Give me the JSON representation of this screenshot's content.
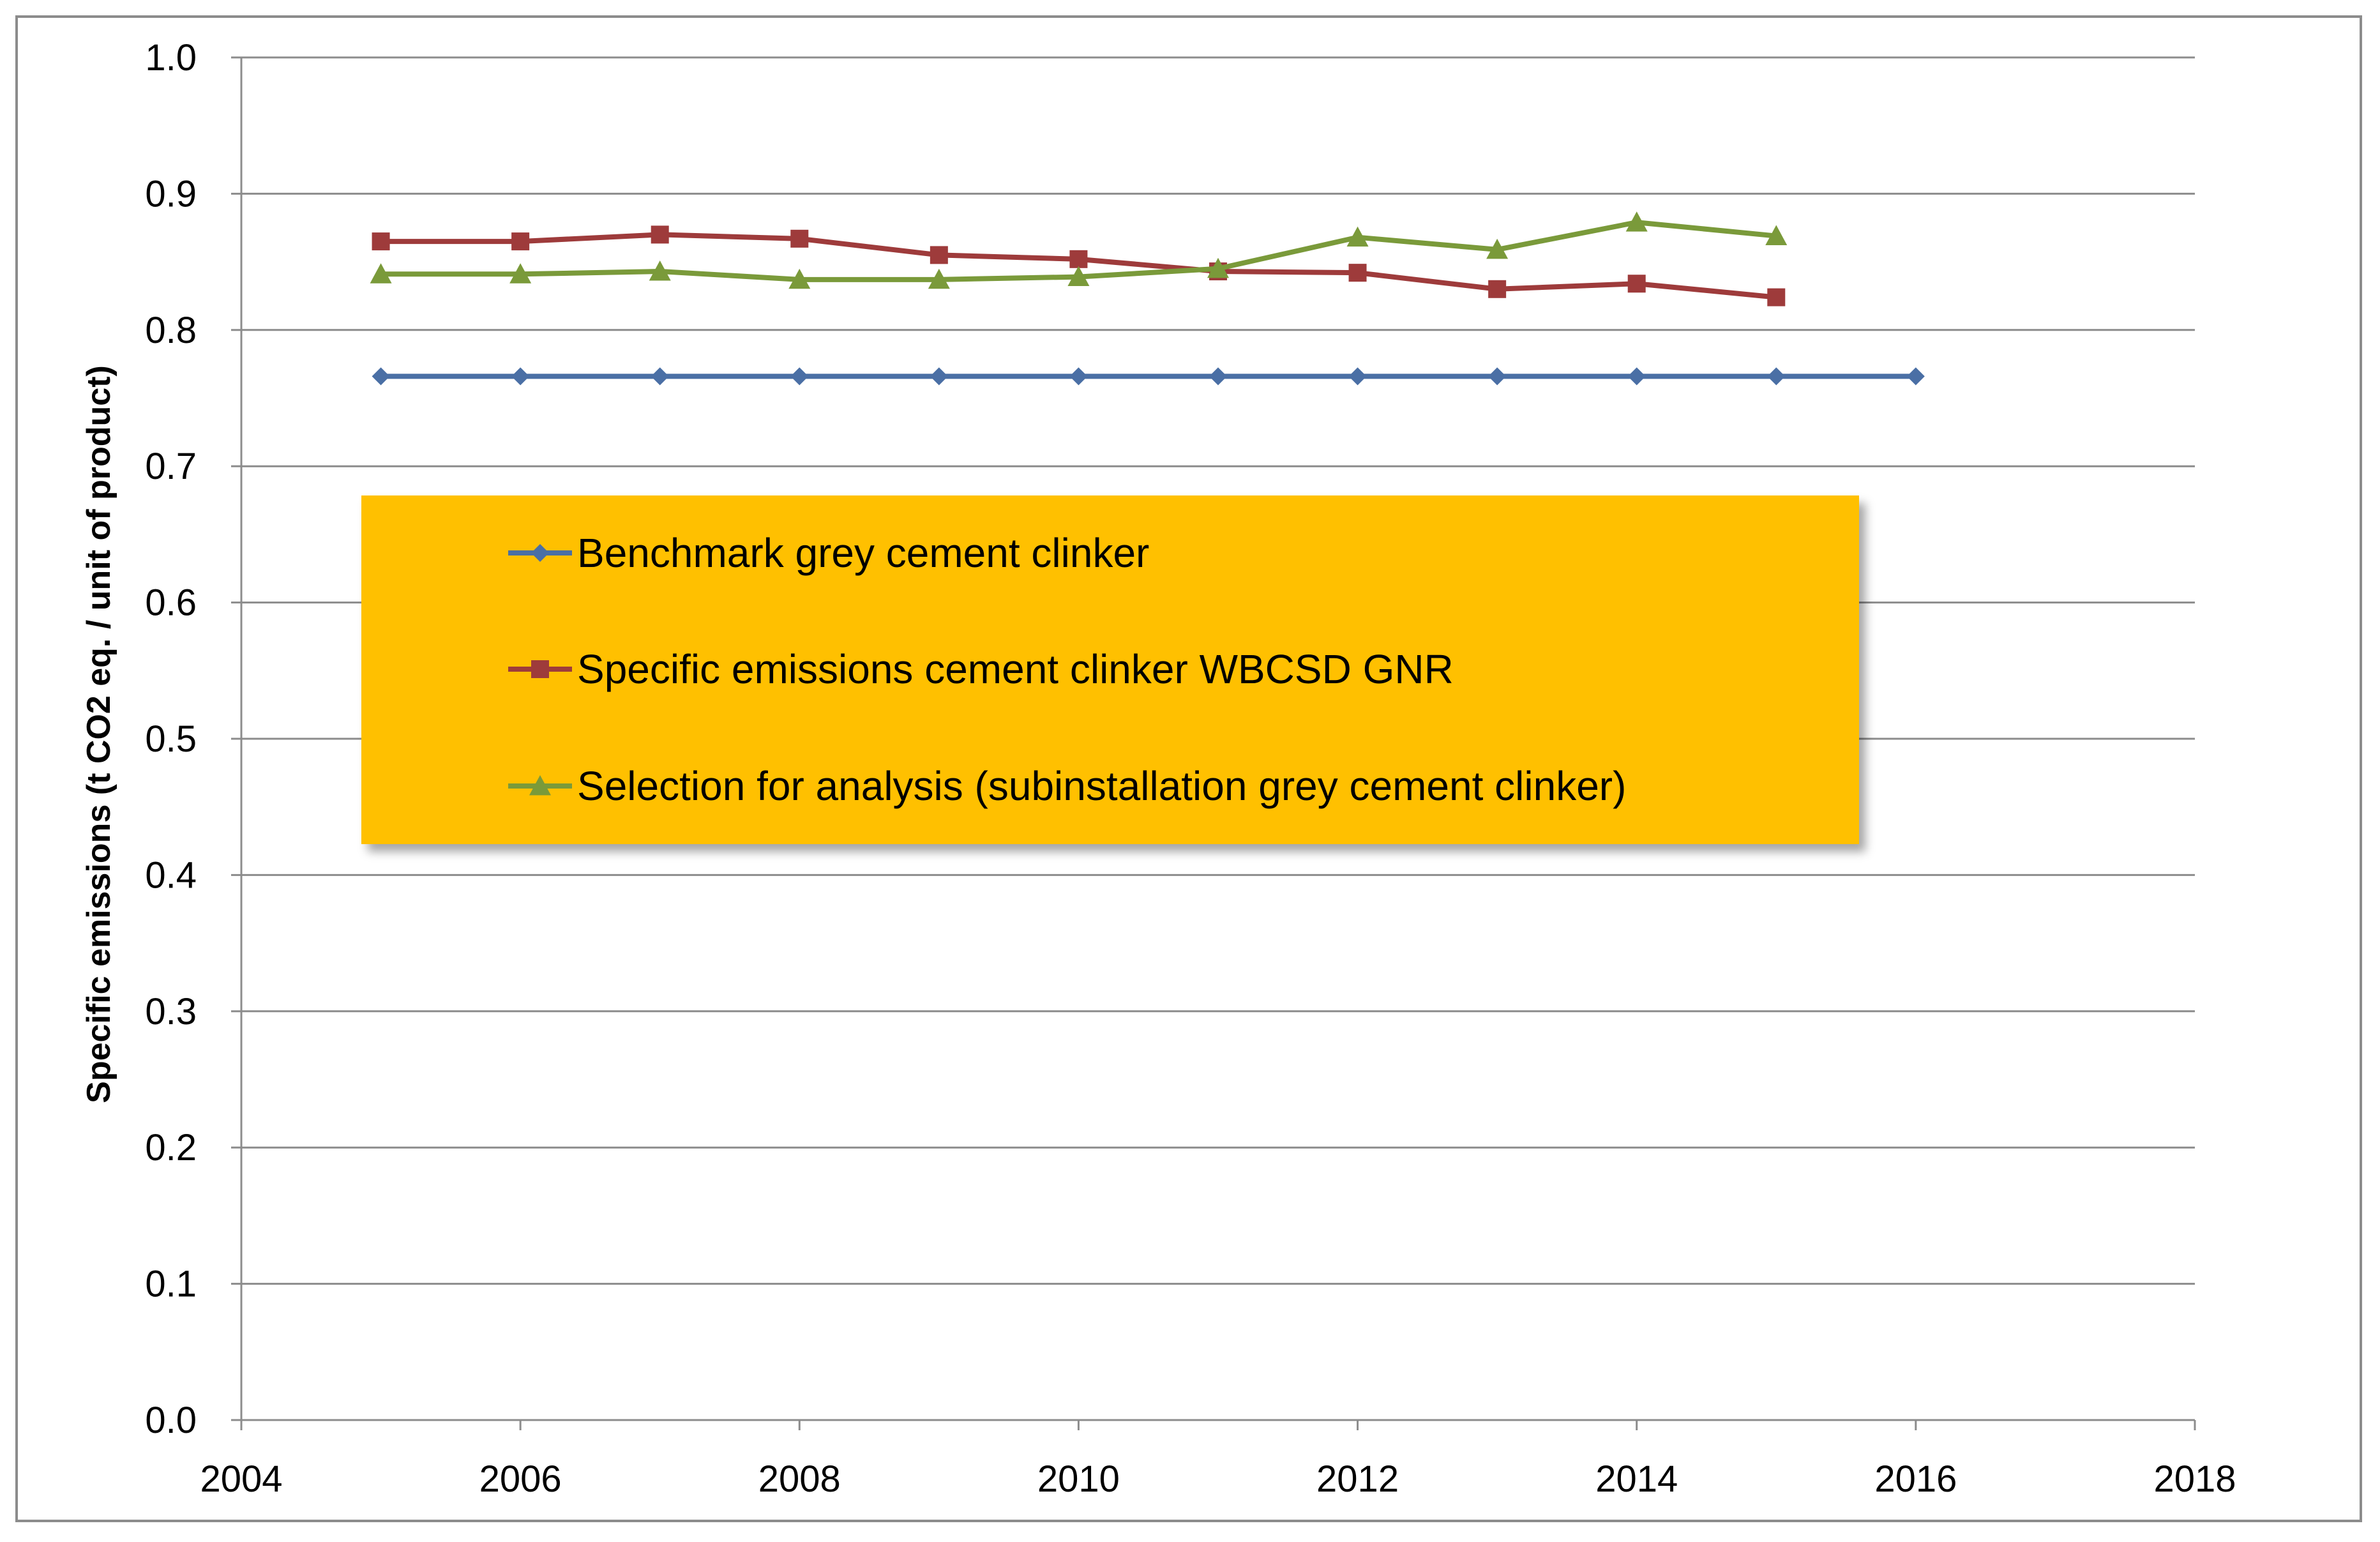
{
  "chart_data": {
    "type": "line",
    "title": "",
    "xlabel": "",
    "ylabel": "Specific emissions (t CO2 eq. / unit of product)",
    "xlim": [
      2004,
      2018
    ],
    "ylim": [
      0,
      1.0
    ],
    "x_ticks": [
      "2004",
      "2006",
      "2008",
      "2010",
      "2012",
      "2014",
      "2016",
      "2018"
    ],
    "y_ticks": [
      "0.0",
      "0.1",
      "0.2",
      "0.3",
      "0.4",
      "0.5",
      "0.6",
      "0.7",
      "0.8",
      "0.9",
      "1.0"
    ],
    "grid": "horizontal",
    "legend_position": "center-left",
    "legend_background": "#FFC000",
    "series": [
      {
        "name": "Benchmark grey cement clinker",
        "color": "#4A6FA5",
        "marker": "diamond",
        "x": [
          2005,
          2006,
          2007,
          2008,
          2009,
          2010,
          2011,
          2012,
          2013,
          2014,
          2015,
          2016
        ],
        "values": [
          0.766,
          0.766,
          0.766,
          0.766,
          0.766,
          0.766,
          0.766,
          0.766,
          0.766,
          0.766,
          0.766,
          0.766
        ]
      },
      {
        "name": "Specific emissions cement clinker WBCSD GNR",
        "color": "#9E3B3B",
        "marker": "square",
        "x": [
          2005,
          2006,
          2007,
          2008,
          2009,
          2010,
          2011,
          2012,
          2013,
          2014,
          2015
        ],
        "values": [
          0.865,
          0.865,
          0.87,
          0.867,
          0.855,
          0.852,
          0.843,
          0.842,
          0.83,
          0.834,
          0.824
        ]
      },
      {
        "name": "Selection for analysis (subinstallation grey cement clinker)",
        "color": "#7A9A3A",
        "marker": "triangle",
        "x": [
          2005,
          2006,
          2007,
          2008,
          2009,
          2010,
          2011,
          2012,
          2013,
          2014,
          2015
        ],
        "values": [
          0.841,
          0.841,
          0.843,
          0.837,
          0.837,
          0.839,
          0.845,
          0.868,
          0.859,
          0.879,
          0.869
        ]
      }
    ]
  }
}
